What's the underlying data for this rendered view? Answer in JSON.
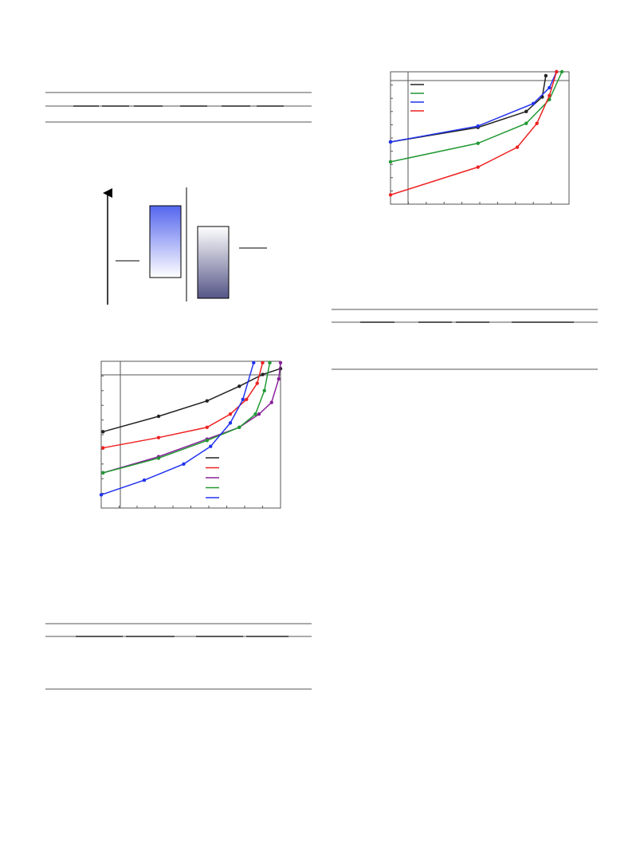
{
  "chart_data": [
    {
      "type": "line",
      "xlim": [
        0,
        1
      ],
      "ylim": [
        0,
        1
      ],
      "series": [
        {
          "color": "#222222",
          "x": [
            0.01,
            0.32,
            0.59,
            0.77,
            0.9,
            1.0
          ],
          "values": [
            0.52,
            0.625,
            0.73,
            0.83,
            0.91,
            0.95
          ]
        },
        {
          "color": "#ee2222",
          "x": [
            0.01,
            0.32,
            0.59,
            0.72,
            0.81,
            0.87,
            0.9
          ],
          "values": [
            0.41,
            0.48,
            0.55,
            0.64,
            0.74,
            0.85,
            0.99
          ]
        },
        {
          "color": "#882299",
          "x": [
            0.01,
            0.32,
            0.59,
            0.77,
            0.88,
            0.95,
            0.99,
            1.0
          ],
          "values": [
            0.24,
            0.35,
            0.47,
            0.55,
            0.64,
            0.72,
            0.88,
            0.99
          ]
        },
        {
          "color": "#229933",
          "x": [
            0.01,
            0.32,
            0.59,
            0.77,
            0.86,
            0.91,
            0.94
          ],
          "values": [
            0.24,
            0.34,
            0.46,
            0.55,
            0.64,
            0.8,
            0.99
          ]
        },
        {
          "color": "#2233ee",
          "x": [
            0,
            0.24,
            0.46,
            0.61,
            0.72,
            0.79,
            0.85
          ],
          "values": [
            0.09,
            0.19,
            0.3,
            0.42,
            0.58,
            0.74,
            0.99
          ]
        }
      ]
    },
    {
      "type": "line",
      "xlim": [
        0,
        1
      ],
      "ylim": [
        0,
        1
      ],
      "series": [
        {
          "color": "#222222",
          "x": [
            0,
            0.49,
            0.76,
            0.85,
            0.87
          ],
          "values": [
            0.47,
            0.58,
            0.7,
            0.81,
            0.97
          ]
        },
        {
          "color": "#229933",
          "x": [
            0,
            0.49,
            0.76,
            0.89,
            0.96
          ],
          "values": [
            0.32,
            0.46,
            0.61,
            0.79,
            1.0
          ]
        },
        {
          "color": "#2233ee",
          "x": [
            0,
            0.49,
            0.8,
            0.89,
            0.93
          ],
          "values": [
            0.47,
            0.59,
            0.76,
            0.88,
            1.0
          ]
        },
        {
          "color": "#ee2222",
          "x": [
            0,
            0.49,
            0.71,
            0.82,
            0.89,
            0.93
          ],
          "values": [
            0.07,
            0.28,
            0.43,
            0.61,
            0.82,
            1.0
          ]
        }
      ]
    }
  ]
}
